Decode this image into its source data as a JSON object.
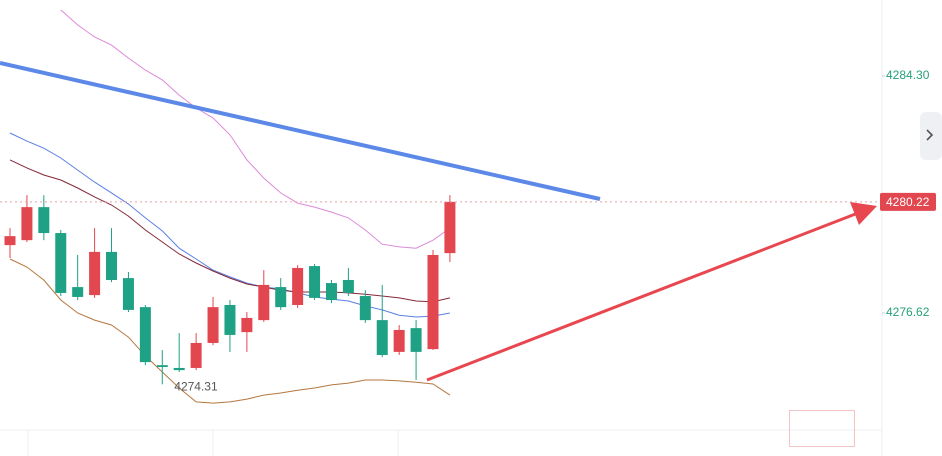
{
  "chart_data": {
    "type": "candlestick",
    "ylim": [
      4272.83,
      4286.76
    ],
    "yticks": [
      {
        "value": 4284.3,
        "label": "4284.30"
      },
      4276.62
    ],
    "up_color": "#e2464f",
    "down_color": "#1ea184",
    "open": [
      4278.82,
      4278.98,
      4280.05,
      4279.21,
      4277.46,
      4277.2,
      4278.6,
      4277.75,
      4276.81,
      4274.93,
      4274.84,
      4274.84,
      4275.65,
      4276.88,
      4276.0,
      4276.39,
      4277.46,
      4276.88,
      4278.14,
      4277.59,
      4277.69,
      4277.17,
      4276.39,
      4275.36,
      4276.13,
      4275.45,
      4278.56
    ],
    "high": [
      4279.37,
      4280.44,
      4280.44,
      4279.31,
      4278.5,
      4279.37,
      4279.37,
      4277.95,
      4276.88,
      4275.42,
      4275.97,
      4275.97,
      4277.14,
      4277.04,
      4276.65,
      4278.01,
      4277.75,
      4278.17,
      4278.21,
      4277.69,
      4278.08,
      4277.36,
      4277.53,
      4276.23,
      4276.39,
      4278.66,
      4280.44
    ],
    "low": [
      4278.4,
      4278.92,
      4278.98,
      4277.17,
      4277.04,
      4277.11,
      4277.62,
      4276.65,
      4274.93,
      4274.31,
      4274.71,
      4274.77,
      4275.58,
      4275.36,
      4275.36,
      4276.33,
      4276.72,
      4276.78,
      4277.04,
      4276.94,
      4277.17,
      4276.3,
      4275.19,
      4275.26,
      4274.45,
      4275.42,
      4278.27
    ],
    "close": [
      4279.11,
      4280.05,
      4279.21,
      4277.27,
      4277.14,
      4278.6,
      4277.69,
      4276.72,
      4275.03,
      4274.87,
      4274.77,
      4275.65,
      4276.81,
      4275.91,
      4276.46,
      4277.53,
      4276.81,
      4278.08,
      4277.11,
      4277.04,
      4277.27,
      4276.39,
      4275.26,
      4276.07,
      4275.36,
      4278.5,
      4280.22
    ],
    "lines": [
      {
        "color": "#dc8ad8",
        "values": [
          null,
          null,
          null,
          4286.44,
          4285.95,
          4285.56,
          4285.3,
          4284.88,
          4284.49,
          4284.17,
          4283.68,
          4283.26,
          4282.94,
          4282.39,
          4281.58,
          4280.99,
          4280.51,
          4280.18,
          4280.05,
          4279.89,
          4279.7,
          4279.31,
          4278.85,
          4278.76,
          4278.72,
          4278.98,
          4279.37
        ]
      },
      {
        "color": "#5b7fe2",
        "values": [
          4282.45,
          4282.19,
          4281.96,
          4281.64,
          4281.25,
          4280.86,
          4280.51,
          4280.15,
          4279.7,
          4279.28,
          4278.72,
          4278.37,
          4278.01,
          4277.79,
          4277.59,
          4277.46,
          4277.4,
          4277.27,
          4277.14,
          4277.07,
          4277.01,
          4276.85,
          4276.72,
          4276.55,
          4276.49,
          4276.52,
          4276.62
        ]
      },
      {
        "color": "#852838",
        "values": [
          4281.58,
          4281.32,
          4281.09,
          4280.93,
          4280.67,
          4280.38,
          4280.12,
          4279.76,
          4279.31,
          4278.92,
          4278.53,
          4278.24,
          4277.98,
          4277.75,
          4277.56,
          4277.46,
          4277.36,
          4277.3,
          4277.3,
          4277.3,
          4277.27,
          4277.23,
          4277.17,
          4277.11,
          4277.01,
          4276.98,
          4277.11
        ]
      },
      {
        "color": "#b4773f",
        "values": [
          4278.37,
          4278.11,
          4277.69,
          4277.04,
          4276.62,
          4276.39,
          4276.23,
          4275.84,
          4275.23,
          4274.71,
          4274.19,
          4273.74,
          4273.7,
          4273.74,
          4273.83,
          4273.96,
          4274.03,
          4274.12,
          4274.19,
          4274.29,
          4274.35,
          4274.45,
          4274.45,
          4274.42,
          4274.38,
          4274.32,
          4273.96
        ]
      }
    ]
  }
}
